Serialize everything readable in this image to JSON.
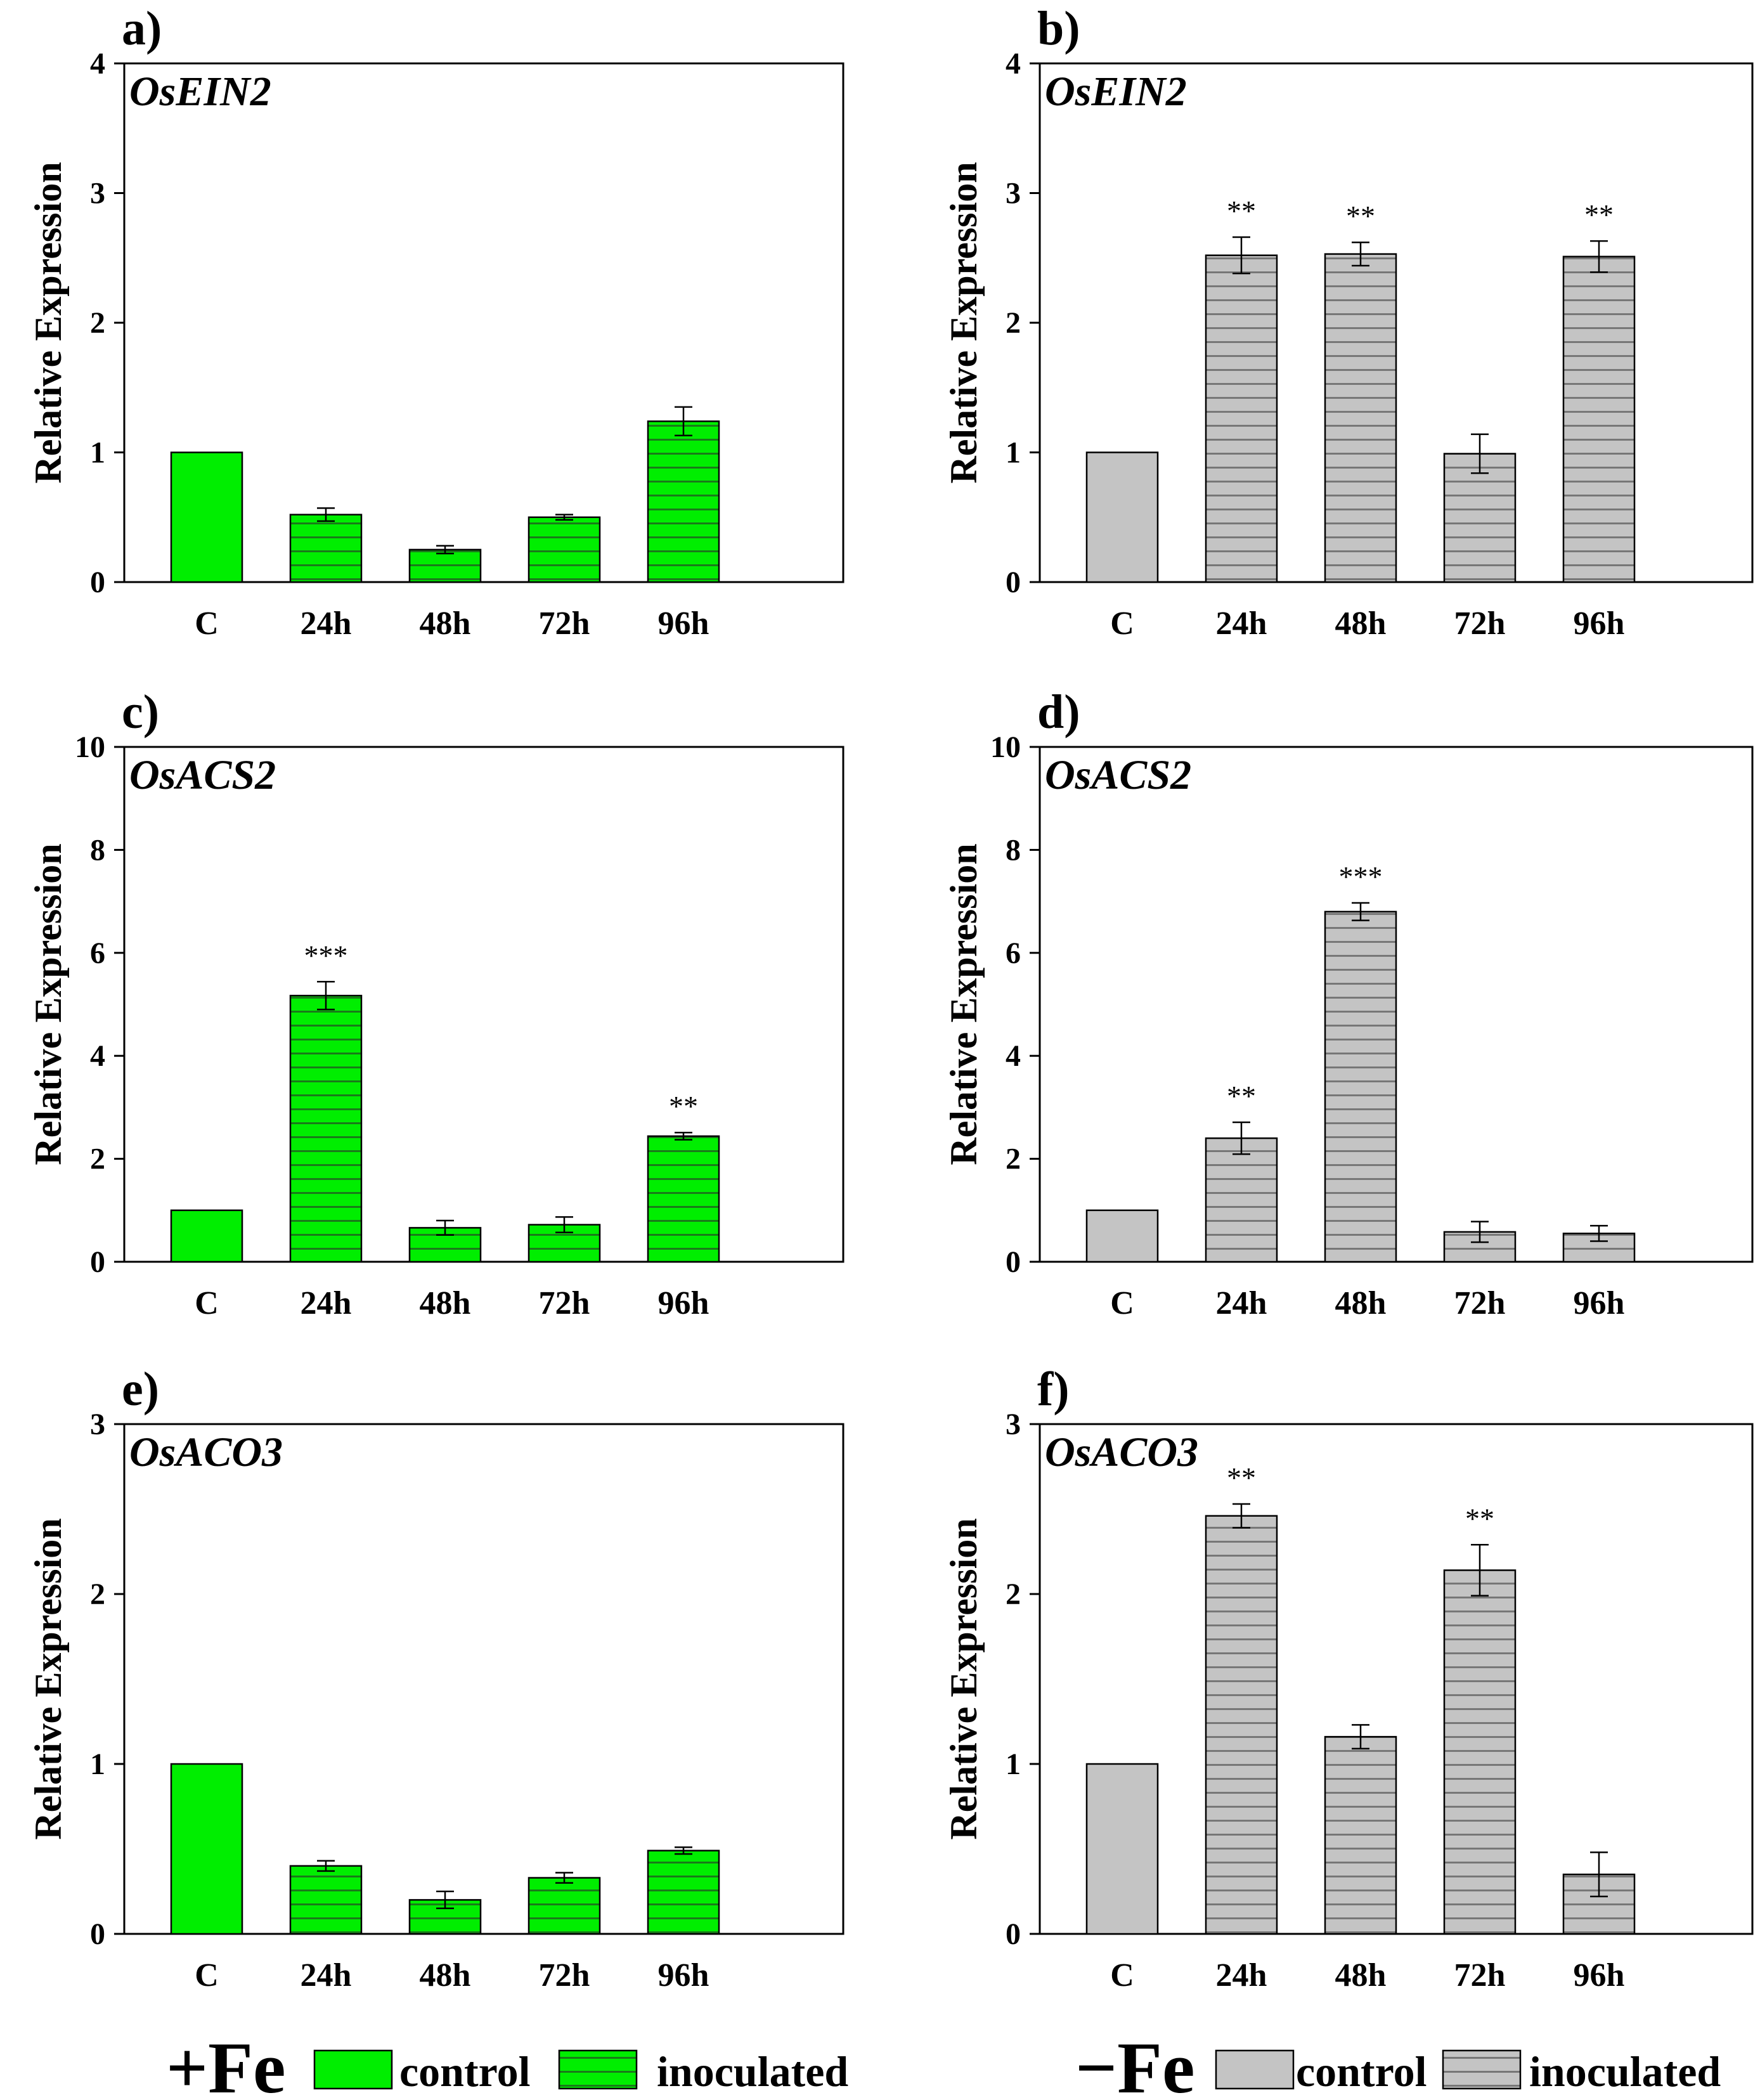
{
  "figure": {
    "y_axis_label": "Relative Expression",
    "colors": {
      "fe_plus": "#00ee00",
      "fe_minus": "#c4c4c4",
      "hatch_fe_plus": "#1a7a1a",
      "hatch_fe_minus": "#777777"
    }
  },
  "chart_data": [
    {
      "id": "a",
      "panel_label": "a)",
      "title": "OsEIN2",
      "type": "bar",
      "condition": "+Fe",
      "ylabel": "Relative Expression",
      "ylim": [
        0,
        4
      ],
      "yticks": [
        "0",
        "1",
        "2",
        "3",
        "4"
      ],
      "categories": [
        "C",
        "24h",
        "48h",
        "72h",
        "96h"
      ],
      "values": [
        1.0,
        0.52,
        0.25,
        0.5,
        1.24
      ],
      "errors": [
        0,
        0.05,
        0.03,
        0.02,
        0.11
      ],
      "significance": [
        "",
        "",
        "",
        "",
        ""
      ]
    },
    {
      "id": "b",
      "panel_label": "b)",
      "title": "OsEIN2",
      "type": "bar",
      "condition": "-Fe",
      "ylabel": "Relative Expression",
      "ylim": [
        0,
        4
      ],
      "yticks": [
        "0",
        "1",
        "2",
        "3",
        "4"
      ],
      "categories": [
        "C",
        "24h",
        "48h",
        "72h",
        "96h"
      ],
      "values": [
        1.0,
        2.52,
        2.53,
        0.99,
        2.51
      ],
      "errors": [
        0,
        0.14,
        0.09,
        0.15,
        0.12
      ],
      "significance": [
        "",
        "**",
        "**",
        "",
        "**"
      ]
    },
    {
      "id": "c",
      "panel_label": "c)",
      "title": "OsACS2",
      "type": "bar",
      "condition": "+Fe",
      "ylabel": "Relative Expression",
      "ylim": [
        0,
        10
      ],
      "yticks": [
        "0",
        "2",
        "4",
        "6",
        "8",
        "10"
      ],
      "categories": [
        "C",
        "24h",
        "48h",
        "72h",
        "96h"
      ],
      "values": [
        1.0,
        5.17,
        0.66,
        0.72,
        2.44
      ],
      "errors": [
        0,
        0.27,
        0.14,
        0.15,
        0.07
      ],
      "significance": [
        "",
        "***",
        "",
        "",
        "**"
      ]
    },
    {
      "id": "d",
      "panel_label": "d)",
      "title": "OsACS2",
      "type": "bar",
      "condition": "-Fe",
      "ylabel": "Relative Expression",
      "ylim": [
        0,
        10
      ],
      "yticks": [
        "0",
        "2",
        "4",
        "6",
        "8",
        "10"
      ],
      "categories": [
        "C",
        "24h",
        "48h",
        "72h",
        "96h"
      ],
      "values": [
        1.0,
        2.4,
        6.8,
        0.58,
        0.55
      ],
      "errors": [
        0,
        0.31,
        0.17,
        0.2,
        0.15
      ],
      "significance": [
        "",
        "**",
        "***",
        "",
        ""
      ]
    },
    {
      "id": "e",
      "panel_label": "e)",
      "title": "OsACO3",
      "type": "bar",
      "condition": "+Fe",
      "ylabel": "Relative Expression",
      "ylim": [
        0,
        3
      ],
      "yticks": [
        "0",
        "1",
        "2",
        "3"
      ],
      "categories": [
        "C",
        "24h",
        "48h",
        "72h",
        "96h"
      ],
      "values": [
        1.0,
        0.4,
        0.2,
        0.33,
        0.49
      ],
      "errors": [
        0,
        0.03,
        0.05,
        0.03,
        0.02
      ],
      "significance": [
        "",
        "",
        "",
        "",
        ""
      ]
    },
    {
      "id": "f",
      "panel_label": "f)",
      "title": "OsACO3",
      "type": "bar",
      "condition": "-Fe",
      "ylabel": "Relative Expression",
      "ylim": [
        0,
        3
      ],
      "yticks": [
        "0",
        "1",
        "2",
        "3"
      ],
      "categories": [
        "C",
        "24h",
        "48h",
        "72h",
        "96h"
      ],
      "values": [
        1.0,
        2.46,
        1.16,
        2.14,
        0.35
      ],
      "errors": [
        0,
        0.07,
        0.07,
        0.15,
        0.13
      ],
      "significance": [
        "",
        "**",
        "",
        "**",
        ""
      ]
    }
  ],
  "legend": [
    {
      "id": "plus",
      "condition_label": "+Fe",
      "control_label": "control",
      "inoculated_label": "inoculated"
    },
    {
      "id": "minus",
      "condition_label": "−Fe",
      "control_label": "control",
      "inoculated_label": "inoculated"
    }
  ]
}
